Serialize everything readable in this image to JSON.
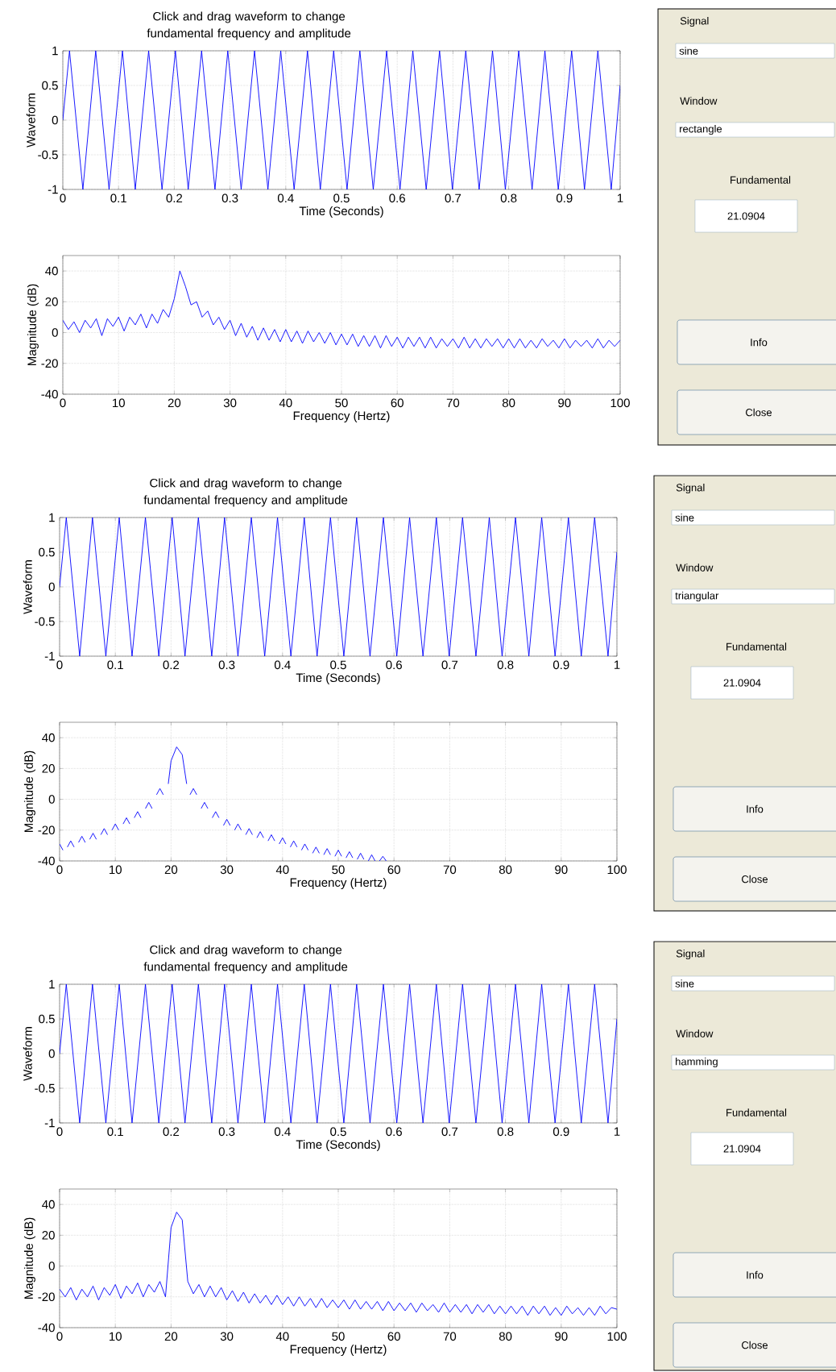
{
  "chart_data": [
    {
      "type": "line",
      "title": "Click and drag waveform to change fundamental frequency and amplitude",
      "xlabel": "Time (Seconds)",
      "ylabel": "Waveform",
      "color": "#0000ff",
      "marker": "none",
      "line_style": "solid",
      "grid": true,
      "xlim": [
        0,
        1
      ],
      "ylim": [
        -1,
        1
      ],
      "xticks": [
        0,
        0.1,
        0.2,
        0.3,
        0.4,
        0.5,
        0.6,
        0.7,
        0.8,
        0.9,
        1
      ],
      "yticks": [
        -1,
        -0.5,
        0,
        0.5,
        1
      ],
      "x": [
        0,
        0.012,
        0.036,
        0.059,
        0.083,
        0.107,
        0.13,
        0.154,
        0.178,
        0.202,
        0.225,
        0.249,
        0.273,
        0.296,
        0.32,
        0.344,
        0.368,
        0.391,
        0.415,
        0.439,
        0.462,
        0.486,
        0.51,
        0.533,
        0.557,
        0.581,
        0.605,
        0.628,
        0.652,
        0.676,
        0.699,
        0.723,
        0.747,
        0.771,
        0.794,
        0.818,
        0.842,
        0.865,
        0.889,
        0.913,
        0.936,
        0.96,
        0.984,
        1
      ],
      "values": [
        0,
        1,
        -1,
        1,
        -1,
        1,
        -1,
        1,
        -1,
        1,
        -1,
        1,
        -1,
        1,
        -1,
        1,
        -1,
        1,
        -1,
        1,
        -1,
        1,
        -1,
        1,
        -1,
        1,
        -1,
        1,
        -1,
        1,
        -1,
        1,
        -1,
        1,
        -1,
        1,
        -1,
        1,
        -1,
        1,
        -1,
        1,
        -1,
        0.5
      ]
    },
    {
      "type": "line",
      "xlabel": "Frequency (Hertz)",
      "ylabel": "Magnitude (dB)",
      "color": "#0000ff",
      "marker": "none",
      "line_style": "solid",
      "grid": true,
      "xlim": [
        0,
        100
      ],
      "ylim": [
        -40,
        50
      ],
      "xticks": [
        0,
        10,
        20,
        30,
        40,
        50,
        60,
        70,
        80,
        90,
        100
      ],
      "yticks": [
        -40,
        -20,
        0,
        20,
        40
      ],
      "x": [
        0,
        1,
        2,
        3,
        4,
        5,
        6,
        7,
        8,
        9,
        10,
        11,
        12,
        13,
        14,
        15,
        16,
        17,
        18,
        19,
        20,
        21,
        22,
        23,
        24,
        25,
        26,
        27,
        28,
        29,
        30,
        31,
        32,
        33,
        34,
        35,
        36,
        37,
        38,
        39,
        40,
        41,
        42,
        43,
        44,
        45,
        46,
        47,
        48,
        49,
        50,
        51,
        52,
        53,
        54,
        55,
        56,
        57,
        58,
        59,
        60,
        61,
        62,
        63,
        64,
        65,
        66,
        67,
        68,
        69,
        70,
        71,
        72,
        73,
        74,
        75,
        76,
        77,
        78,
        79,
        80,
        81,
        82,
        83,
        84,
        85,
        86,
        87,
        88,
        89,
        90,
        91,
        92,
        93,
        94,
        95,
        96,
        97,
        98,
        99,
        100
      ],
      "values": [
        8,
        2,
        7,
        0,
        8,
        3,
        9,
        -2,
        9,
        4,
        10,
        1,
        10,
        5,
        12,
        3,
        12,
        6,
        15,
        10,
        22,
        40,
        30,
        18,
        20,
        10,
        14,
        5,
        10,
        2,
        8,
        -2,
        6,
        -3,
        4,
        -5,
        3,
        -5,
        2,
        -6,
        2,
        -6,
        1,
        -7,
        1,
        -6,
        0,
        -7,
        0,
        -8,
        -1,
        -8,
        -1,
        -9,
        -2,
        -9,
        -2,
        -10,
        -2,
        -9,
        -3,
        -10,
        -3,
        -9,
        -3,
        -10,
        -3,
        -10,
        -4,
        -9,
        -4,
        -10,
        -3,
        -10,
        -4,
        -10,
        -4,
        -9,
        -4,
        -10,
        -4,
        -10,
        -4,
        -10,
        -5,
        -10,
        -4,
        -9,
        -5,
        -10,
        -4,
        -10,
        -5,
        -9,
        -5,
        -10,
        -4,
        -10,
        -5,
        -9,
        -5
      ]
    },
    {
      "type": "other",
      "annotations": [
        "Signal",
        "sine",
        "Window",
        "rectangle",
        "Fundamental",
        "21.0904",
        "Info",
        "Close"
      ]
    },
    {
      "type": "line",
      "title": "Click and drag waveform to change fundamental frequency and amplitude",
      "xlabel": "Time (Seconds)",
      "ylabel": "Waveform",
      "color": "#0000ff",
      "marker": "none",
      "line_style": "solid",
      "grid": true,
      "xlim": [
        0,
        1
      ],
      "ylim": [
        -1,
        1
      ],
      "xticks": [
        0,
        0.1,
        0.2,
        0.3,
        0.4,
        0.5,
        0.6,
        0.7,
        0.8,
        0.9,
        1
      ],
      "yticks": [
        -1,
        -0.5,
        0,
        0.5,
        1
      ],
      "x": [
        0,
        0.012,
        0.036,
        0.059,
        0.083,
        0.107,
        0.13,
        0.154,
        0.178,
        0.202,
        0.225,
        0.249,
        0.273,
        0.296,
        0.32,
        0.344,
        0.368,
        0.391,
        0.415,
        0.439,
        0.462,
        0.486,
        0.51,
        0.533,
        0.557,
        0.581,
        0.605,
        0.628,
        0.652,
        0.676,
        0.699,
        0.723,
        0.747,
        0.771,
        0.794,
        0.818,
        0.842,
        0.865,
        0.889,
        0.913,
        0.936,
        0.96,
        0.984,
        1
      ],
      "values": [
        0,
        1,
        -1,
        1,
        -1,
        1,
        -1,
        1,
        -1,
        1,
        -1,
        1,
        -1,
        1,
        -1,
        1,
        -1,
        1,
        -1,
        1,
        -1,
        1,
        -1,
        1,
        -1,
        1,
        -1,
        1,
        -1,
        1,
        -1,
        1,
        -1,
        1,
        -1,
        1,
        -1,
        1,
        -1,
        1,
        -1,
        1,
        -1,
        0.5
      ]
    },
    {
      "type": "line",
      "xlabel": "Frequency (Hertz)",
      "ylabel": "Magnitude (dB)",
      "color": "#0000ff",
      "marker": "none",
      "line_style": "solid",
      "grid": true,
      "xlim": [
        0,
        100
      ],
      "ylim": [
        -40,
        50
      ],
      "xticks": [
        0,
        10,
        20,
        30,
        40,
        50,
        60,
        70,
        80,
        90,
        100
      ],
      "yticks": [
        -40,
        -20,
        0,
        20,
        40
      ],
      "x": [
        0,
        0.6,
        1,
        1.4,
        2,
        2.6,
        3,
        3.4,
        4,
        4.6,
        5,
        5.4,
        6,
        6.6,
        7,
        7.4,
        8,
        8.6,
        9,
        9.4,
        10,
        10.6,
        11,
        11.4,
        12,
        12.6,
        13,
        13.4,
        14,
        14.6,
        15,
        15.4,
        16,
        16.6,
        17,
        17.4,
        18,
        18.6,
        19,
        19.5,
        20,
        21,
        22,
        22.8,
        23,
        23.4,
        24,
        24.6,
        25,
        25.4,
        26,
        26.6,
        27,
        27.4,
        28,
        28.6,
        29,
        29.4,
        30,
        30.6,
        31,
        31.4,
        32,
        32.6,
        33,
        33.4,
        34,
        34.6,
        35,
        35.4,
        36,
        36.6,
        37,
        37.4,
        38,
        38.6,
        39,
        39.4,
        40,
        40.6,
        41,
        41.4,
        42,
        42.6,
        43,
        43.4,
        44,
        44.6,
        45,
        45.4,
        46,
        46.6,
        47,
        47.4,
        48,
        48.6,
        49,
        49.4,
        50,
        50.6,
        51,
        51.4,
        52,
        52.6,
        53,
        53.4,
        54,
        54.6,
        55,
        55.4,
        56,
        56.6,
        57,
        57.4,
        58,
        58.6
      ],
      "values": [
        -29,
        -33,
        null,
        -31,
        -27,
        -31,
        null,
        -28,
        -24,
        -28,
        null,
        -26,
        -22,
        -26,
        null,
        -23,
        -19,
        -23,
        null,
        -20,
        -16,
        -20,
        null,
        -16,
        -12,
        -16,
        null,
        -12,
        -8,
        -12,
        null,
        -6,
        -2,
        -6,
        null,
        3,
        7,
        3,
        null,
        10,
        25,
        34,
        29,
        10,
        null,
        3,
        7,
        3,
        null,
        -6,
        -2,
        -6,
        null,
        -12,
        -8,
        -12,
        null,
        -17,
        -13,
        -17,
        null,
        -20,
        -16,
        -20,
        null,
        -23,
        -19,
        -23,
        null,
        -25,
        -21,
        -25,
        null,
        -27,
        -23,
        -27,
        null,
        -29,
        -25,
        -29,
        null,
        -31,
        -27,
        -31,
        null,
        -33,
        -29,
        -33,
        null,
        -35,
        -31,
        -35,
        null,
        -36,
        -32,
        -36,
        null,
        -37,
        -33,
        -37,
        null,
        -38,
        -34,
        -38,
        null,
        -39,
        -35,
        -39,
        null,
        -40,
        -36,
        -40,
        null,
        -40,
        -37,
        -40
      ]
    },
    {
      "type": "other",
      "annotations": [
        "Signal",
        "sine",
        "Window",
        "triangular",
        "Fundamental",
        "21.0904",
        "Info",
        "Close"
      ]
    },
    {
      "type": "line",
      "title": "Click and drag waveform to change fundamental frequency and amplitude",
      "xlabel": "Time (Seconds)",
      "ylabel": "Waveform",
      "color": "#0000ff",
      "marker": "none",
      "line_style": "solid",
      "grid": true,
      "xlim": [
        0,
        1
      ],
      "ylim": [
        -1,
        1
      ],
      "xticks": [
        0,
        0.1,
        0.2,
        0.3,
        0.4,
        0.5,
        0.6,
        0.7,
        0.8,
        0.9,
        1
      ],
      "yticks": [
        -1,
        -0.5,
        0,
        0.5,
        1
      ],
      "x": [
        0,
        0.012,
        0.036,
        0.059,
        0.083,
        0.107,
        0.13,
        0.154,
        0.178,
        0.202,
        0.225,
        0.249,
        0.273,
        0.296,
        0.32,
        0.344,
        0.368,
        0.391,
        0.415,
        0.439,
        0.462,
        0.486,
        0.51,
        0.533,
        0.557,
        0.581,
        0.605,
        0.628,
        0.652,
        0.676,
        0.699,
        0.723,
        0.747,
        0.771,
        0.794,
        0.818,
        0.842,
        0.865,
        0.889,
        0.913,
        0.936,
        0.96,
        0.984,
        1
      ],
      "values": [
        0,
        1,
        -1,
        1,
        -1,
        1,
        -1,
        1,
        -1,
        1,
        -1,
        1,
        -1,
        1,
        -1,
        1,
        -1,
        1,
        -1,
        1,
        -1,
        1,
        -1,
        1,
        -1,
        1,
        -1,
        1,
        -1,
        1,
        -1,
        1,
        -1,
        1,
        -1,
        1,
        -1,
        1,
        -1,
        1,
        -1,
        1,
        -1,
        0.5
      ]
    },
    {
      "type": "line",
      "xlabel": "Frequency (Hertz)",
      "ylabel": "Magnitude (dB)",
      "color": "#0000ff",
      "marker": "none",
      "line_style": "solid",
      "grid": true,
      "xlim": [
        0,
        100
      ],
      "ylim": [
        -40,
        50
      ],
      "xticks": [
        0,
        10,
        20,
        30,
        40,
        50,
        60,
        70,
        80,
        90,
        100
      ],
      "yticks": [
        -40,
        -20,
        0,
        20,
        40
      ],
      "x": [
        0,
        1,
        2,
        3,
        4,
        5,
        6,
        7,
        8,
        9,
        10,
        11,
        12,
        13,
        14,
        15,
        16,
        17,
        18,
        19,
        20,
        21,
        22,
        23,
        24,
        25,
        26,
        27,
        28,
        29,
        30,
        31,
        32,
        33,
        34,
        35,
        36,
        37,
        38,
        39,
        40,
        41,
        42,
        43,
        44,
        45,
        46,
        47,
        48,
        49,
        50,
        51,
        52,
        53,
        54,
        55,
        56,
        57,
        58,
        59,
        60,
        61,
        62,
        63,
        64,
        65,
        66,
        67,
        68,
        69,
        70,
        71,
        72,
        73,
        74,
        75,
        76,
        77,
        78,
        79,
        80,
        81,
        82,
        83,
        84,
        85,
        86,
        87,
        88,
        89,
        90,
        91,
        92,
        93,
        94,
        95,
        96,
        97,
        98,
        99,
        100
      ],
      "values": [
        -15,
        -20,
        -14,
        -22,
        -15,
        -20,
        -13,
        -22,
        -14,
        -19,
        -12,
        -21,
        -13,
        -18,
        -11,
        -20,
        -12,
        -17,
        -10,
        -20,
        25,
        35,
        30,
        -10,
        -18,
        -12,
        -20,
        -13,
        -20,
        -14,
        -22,
        -16,
        -23,
        -17,
        -24,
        -18,
        -24,
        -19,
        -25,
        -19,
        -25,
        -20,
        -26,
        -20,
        -26,
        -21,
        -27,
        -21,
        -27,
        -22,
        -27,
        -22,
        -28,
        -22,
        -28,
        -23,
        -28,
        -23,
        -29,
        -23,
        -29,
        -24,
        -29,
        -24,
        -30,
        -24,
        -29,
        -25,
        -30,
        -24,
        -30,
        -25,
        -30,
        -25,
        -31,
        -25,
        -30,
        -25,
        -31,
        -26,
        -31,
        -26,
        -31,
        -26,
        -32,
        -26,
        -31,
        -26,
        -32,
        -27,
        -32,
        -26,
        -31,
        -27,
        -32,
        -27,
        -32,
        -26,
        -31,
        -27,
        -28
      ]
    },
    {
      "type": "other",
      "annotations": [
        "Signal",
        "sine",
        "Window",
        "hamming",
        "Fundamental",
        "21.0904",
        "Info",
        "Close"
      ]
    }
  ]
}
